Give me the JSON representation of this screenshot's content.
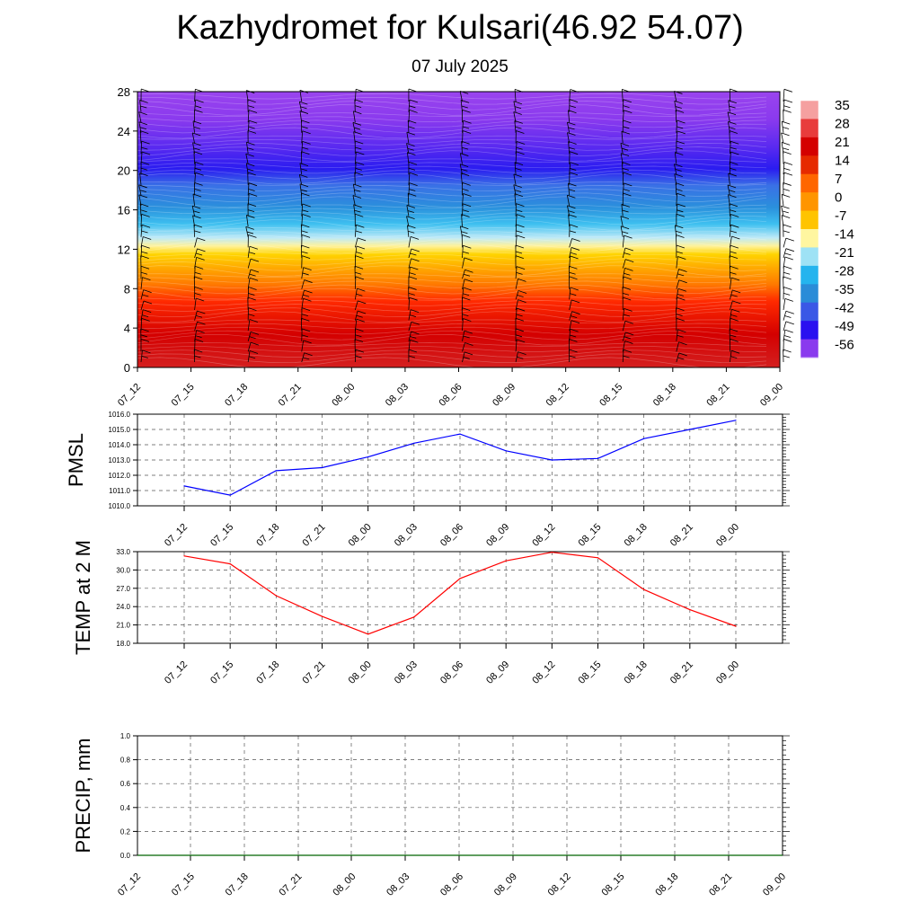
{
  "title": "Kazhydromet for Kulsari(46.92 54.07)",
  "subtitle": "07 July 2025",
  "chart_data": [
    {
      "type": "heatmap",
      "description": "Temperature profile with wind barbs",
      "x_ticks": [
        "07_12",
        "07_15",
        "07_18",
        "07_21",
        "08_00",
        "08_03",
        "08_06",
        "08_09",
        "08_12",
        "08_15",
        "08_18",
        "08_21",
        "09_00"
      ],
      "y_ticks": [
        "0",
        "4",
        "8",
        "12",
        "16",
        "20",
        "24",
        "28"
      ],
      "ylim": [
        0,
        28
      ],
      "colorbar_labels": [
        "35",
        "28",
        "21",
        "14",
        "7",
        "0",
        "-7",
        "-14",
        "-21",
        "-28",
        "-35",
        "-42",
        "-49",
        "-56"
      ],
      "colorbar_colors": [
        "#f5a0a0",
        "#e83c3c",
        "#d40000",
        "#e62a00",
        "#ff6600",
        "#ff9500",
        "#ffc400",
        "#fff6a0",
        "#9ee2f5",
        "#24b4ee",
        "#2a8cd8",
        "#3a58e6",
        "#2a10f0",
        "#8a3aee"
      ]
    },
    {
      "type": "line",
      "ylabel": "PMSL",
      "ylim": [
        1010.0,
        1016.0
      ],
      "y_ticks": [
        "1010.0",
        "1011.0",
        "1012.0",
        "1013.0",
        "1014.0",
        "1015.0",
        "1016.0"
      ],
      "x": [
        "07_12",
        "07_15",
        "07_18",
        "07_21",
        "08_00",
        "08_03",
        "08_06",
        "08_09",
        "08_12",
        "08_15",
        "08_18",
        "08_21",
        "09_00"
      ],
      "values": [
        1011.3,
        1010.7,
        1012.3,
        1012.5,
        1013.2,
        1014.1,
        1014.7,
        1013.6,
        1013.0,
        1013.1,
        1014.4,
        1015.0,
        1015.6
      ],
      "color": "#0000ff"
    },
    {
      "type": "line",
      "ylabel": "TEMP at 2 M",
      "ylim": [
        18.0,
        33.0
      ],
      "y_ticks": [
        "18.0",
        "21.0",
        "24.0",
        "27.0",
        "30.0",
        "33.0"
      ],
      "x": [
        "07_12",
        "07_15",
        "07_18",
        "07_21",
        "08_00",
        "08_03",
        "08_06",
        "08_09",
        "08_12",
        "08_15",
        "08_18",
        "08_21",
        "09_00"
      ],
      "values": [
        32.3,
        31.0,
        25.8,
        22.4,
        19.5,
        22.3,
        28.6,
        31.5,
        32.9,
        32.0,
        26.8,
        23.5,
        20.8
      ],
      "color": "#ff0000"
    },
    {
      "type": "line",
      "ylabel": "PRECIP, mm",
      "ylim": [
        0.0,
        1.0
      ],
      "y_ticks": [
        "0.0",
        "0.2",
        "0.4",
        "0.6",
        "0.8",
        "1.0"
      ],
      "x": [
        "07_12",
        "07_15",
        "07_18",
        "07_21",
        "08_00",
        "08_03",
        "08_06",
        "08_09",
        "08_12",
        "08_15",
        "08_18",
        "08_21",
        "09_00"
      ],
      "values": [
        0,
        0,
        0,
        0,
        0,
        0,
        0,
        0,
        0,
        0,
        0,
        0,
        0
      ],
      "color": "#006400"
    }
  ]
}
